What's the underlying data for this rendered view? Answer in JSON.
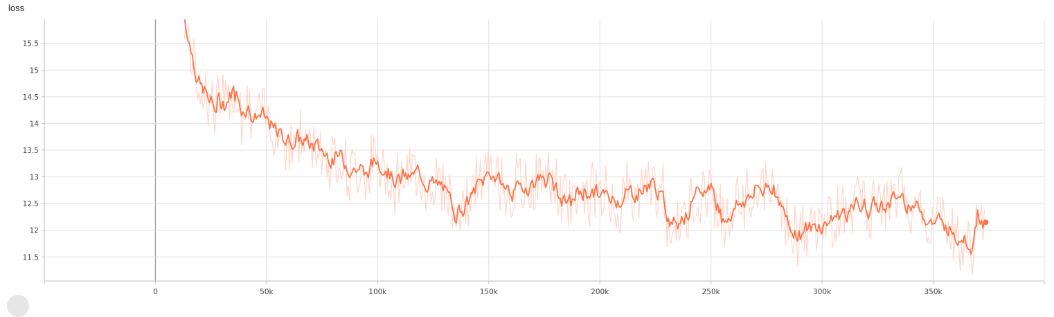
{
  "chart_data": {
    "type": "line",
    "title": "loss",
    "xlabel": "",
    "ylabel": "",
    "xlim": [
      -50000,
      400000
    ],
    "ylim": [
      11.05,
      15.95
    ],
    "x_ticks": [
      0,
      50000,
      100000,
      150000,
      200000,
      250000,
      300000,
      350000
    ],
    "x_tick_labels": [
      "0",
      "50k",
      "100k",
      "150k",
      "200k",
      "250k",
      "300k",
      "350k"
    ],
    "y_ticks": [
      11.5,
      12,
      12.5,
      13,
      13.5,
      14,
      14.5,
      15,
      15.5
    ],
    "y_tick_labels": [
      "11.5",
      "12",
      "12.5",
      "13",
      "13.5",
      "14",
      "14.5",
      "15",
      "15.5"
    ],
    "grid": true,
    "series": [
      {
        "color": "#ff7043",
        "raw_color": "#ffccbc",
        "x": [
          13000,
          20000,
          27000,
          35000,
          45000,
          55000,
          65000,
          75000,
          85000,
          95000,
          100000,
          110000,
          120000,
          130000,
          135000,
          145000,
          150000,
          160000,
          170000,
          175000,
          185000,
          195000,
          205000,
          215000,
          225000,
          232000,
          240000,
          250000,
          255000,
          265000,
          278000,
          285000,
          295000,
          305000,
          315000,
          325000,
          332000,
          340000,
          350000,
          360000,
          368000,
          370000,
          373000
        ],
        "y": [
          16.0,
          14.7,
          14.3,
          14.6,
          14.2,
          13.8,
          13.7,
          13.5,
          13.3,
          13.1,
          13.3,
          12.95,
          13.05,
          12.7,
          12.35,
          12.8,
          13.1,
          12.75,
          12.85,
          13.0,
          12.5,
          12.75,
          12.55,
          12.7,
          12.85,
          12.1,
          12.45,
          12.9,
          12.2,
          12.6,
          12.9,
          12.1,
          11.95,
          12.25,
          12.45,
          12.4,
          12.65,
          12.55,
          12.2,
          12.05,
          11.7,
          12.4,
          12.15
        ]
      }
    ]
  }
}
